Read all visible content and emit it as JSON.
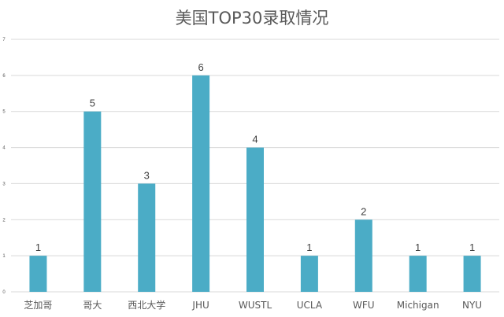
{
  "chart_data": {
    "type": "bar",
    "title": "美国TOP30录取情况",
    "categories": [
      "芝加哥",
      "哥大",
      "西北大学",
      "JHU",
      "WUSTL",
      "UCLA",
      "WFU",
      "Michigan",
      "NYU"
    ],
    "values": [
      1,
      5,
      3,
      6,
      4,
      1,
      2,
      1,
      1
    ],
    "ylim": [
      0,
      7
    ],
    "yticks": [
      0,
      1,
      2,
      3,
      4,
      5,
      6,
      7
    ],
    "data_labels_shown": true,
    "grid": true,
    "legend": "none"
  },
  "colors": {
    "bar": "#4BACC6",
    "title": "#595959",
    "axis_text": "#595959",
    "data_label": "#404040",
    "grid": "#D9D9D9"
  }
}
